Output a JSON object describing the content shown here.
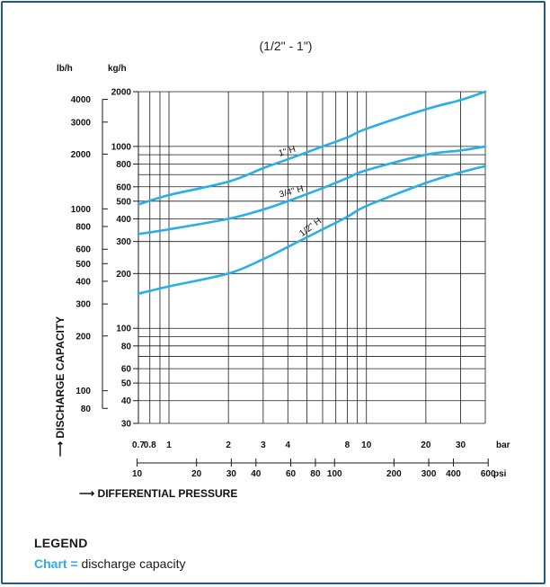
{
  "chart_data": {
    "type": "line",
    "title": "(1/2\" - 1\")",
    "y_units_left": "lb/h",
    "y_units_right": "kg/h",
    "ylabel": "DISCHARGE CAPACITY",
    "xlabel": "DIFFERENTIAL PRESSURE",
    "x_unit_bar": "bar",
    "x_unit_psi": "psi",
    "y_scale": "log",
    "x_scale": "log",
    "ylim_kgh": [
      30,
      2000
    ],
    "xlim_bar": [
      0.7,
      40
    ],
    "grid": true,
    "kg_ticks": [
      30,
      40,
      50,
      60,
      80,
      100,
      200,
      300,
      400,
      500,
      600,
      800,
      1000,
      2000
    ],
    "lb_ticks": [
      80,
      100,
      200,
      300,
      400,
      500,
      600,
      800,
      1000,
      2000,
      3000,
      4000
    ],
    "bar_ticks": [
      {
        "v": 0.7,
        "label": "0.7"
      },
      {
        "v": 0.8,
        "label": "0.8"
      },
      {
        "v": 1,
        "label": "1"
      },
      {
        "v": 2,
        "label": "2"
      },
      {
        "v": 3,
        "label": "3"
      },
      {
        "v": 4,
        "label": "4"
      },
      {
        "v": 8,
        "label": "8"
      },
      {
        "v": 10,
        "label": "10"
      },
      {
        "v": 20,
        "label": "20"
      },
      {
        "v": 30,
        "label": "30"
      }
    ],
    "psi_ticks": [
      10,
      20,
      30,
      40,
      60,
      80,
      100,
      200,
      300,
      400,
      600
    ],
    "series": [
      {
        "name": "1\" H",
        "x": [
          0.7,
          1,
          2,
          3,
          4,
          6,
          8,
          10,
          20,
          30,
          40
        ],
        "y": [
          480,
          540,
          640,
          760,
          850,
          1000,
          1120,
          1250,
          1600,
          1800,
          2000
        ]
      },
      {
        "name": "3/4\" H",
        "x": [
          0.7,
          1,
          2,
          3,
          4,
          6,
          8,
          10,
          20,
          30,
          40
        ],
        "y": [
          330,
          350,
          400,
          450,
          500,
          590,
          670,
          740,
          900,
          950,
          1000
        ]
      },
      {
        "name": "1/2\" H",
        "x": [
          0.7,
          1,
          2,
          3,
          4,
          6,
          8,
          10,
          20,
          30,
          40
        ],
        "y": [
          155,
          170,
          200,
          240,
          280,
          350,
          410,
          470,
          630,
          720,
          780
        ]
      }
    ]
  },
  "legend": {
    "title": "LEGEND",
    "key": "Chart =",
    "text": "discharge capacity"
  },
  "colors": {
    "curve": "#29aee6",
    "grid": "#1a1a1a",
    "frame": "#1f5a8f"
  }
}
